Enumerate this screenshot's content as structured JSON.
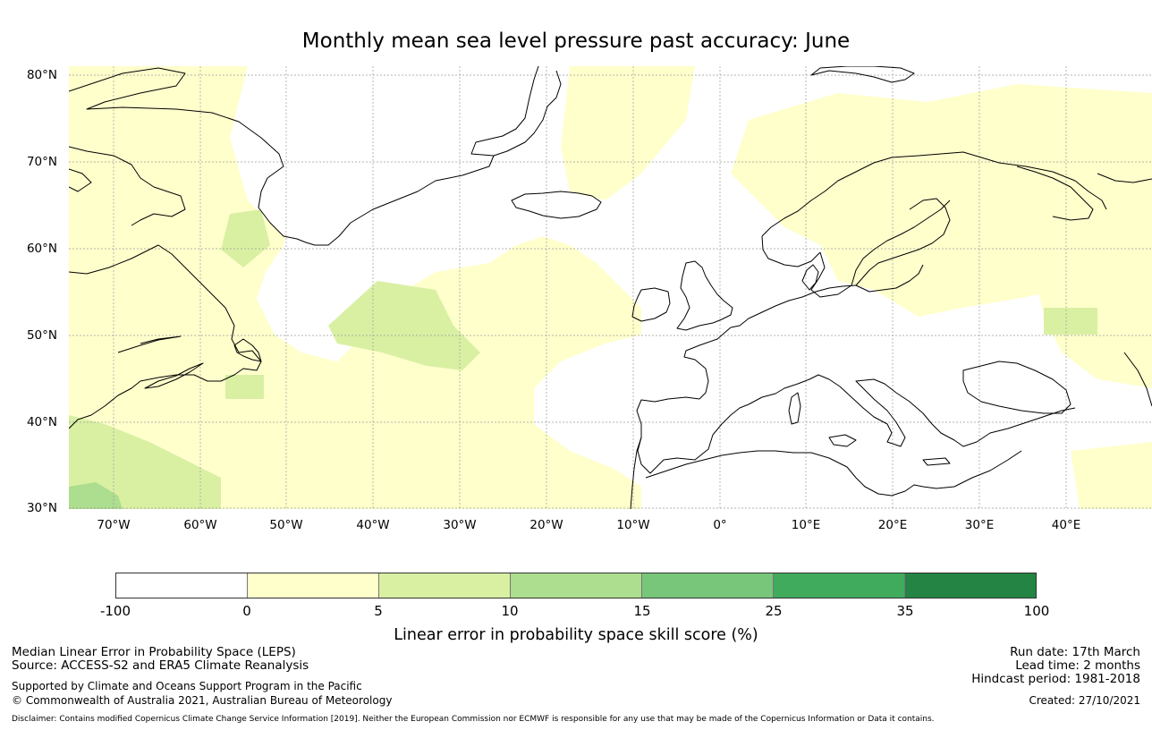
{
  "title": "Monthly mean sea level pressure past accuracy: June",
  "map": {
    "lat_labels": [
      "80°N",
      "70°N",
      "60°N",
      "50°N",
      "40°N",
      "30°N"
    ],
    "lon_labels": [
      "70°W",
      "60°W",
      "50°W",
      "40°W",
      "30°W",
      "20°W",
      "10°W",
      "0°",
      "10°E",
      "20°E",
      "30°E",
      "40°E"
    ],
    "region": "North Atlantic and Europe"
  },
  "colorbar": {
    "ticks": [
      "-100",
      "0",
      "5",
      "10",
      "15",
      "25",
      "35",
      "100"
    ],
    "colors": [
      "#ffffff",
      "#ffffcc",
      "#d9f0a3",
      "#addd8e",
      "#78c679",
      "#41ab5d",
      "#238443"
    ],
    "label": "Linear error in probability space skill score (%)"
  },
  "footer": {
    "left_line1": "Median Linear Error in Probability Space (LEPS)",
    "left_line2": "Source: ACCESS-S2 and ERA5 Climate Reanalysis",
    "left_line3": "Supported by Climate and Oceans Support Program in the Pacific",
    "left_line4": "© Commonwealth of Australia 2021, Australian Bureau of Meteorology",
    "right_line1": "Run date: 17th March",
    "right_line2": "Lead time: 2 months",
    "right_line3": "Hindcast period: 1981-2018",
    "right_line4": "Created: 27/10/2021",
    "disclaimer": "Disclaimer: Contains modified Copernicus Climate Change Service Information [2019]. Neither the European Commission nor ECMWF is responsible for any use that may be made of the Copernicus Information or Data it contains."
  }
}
